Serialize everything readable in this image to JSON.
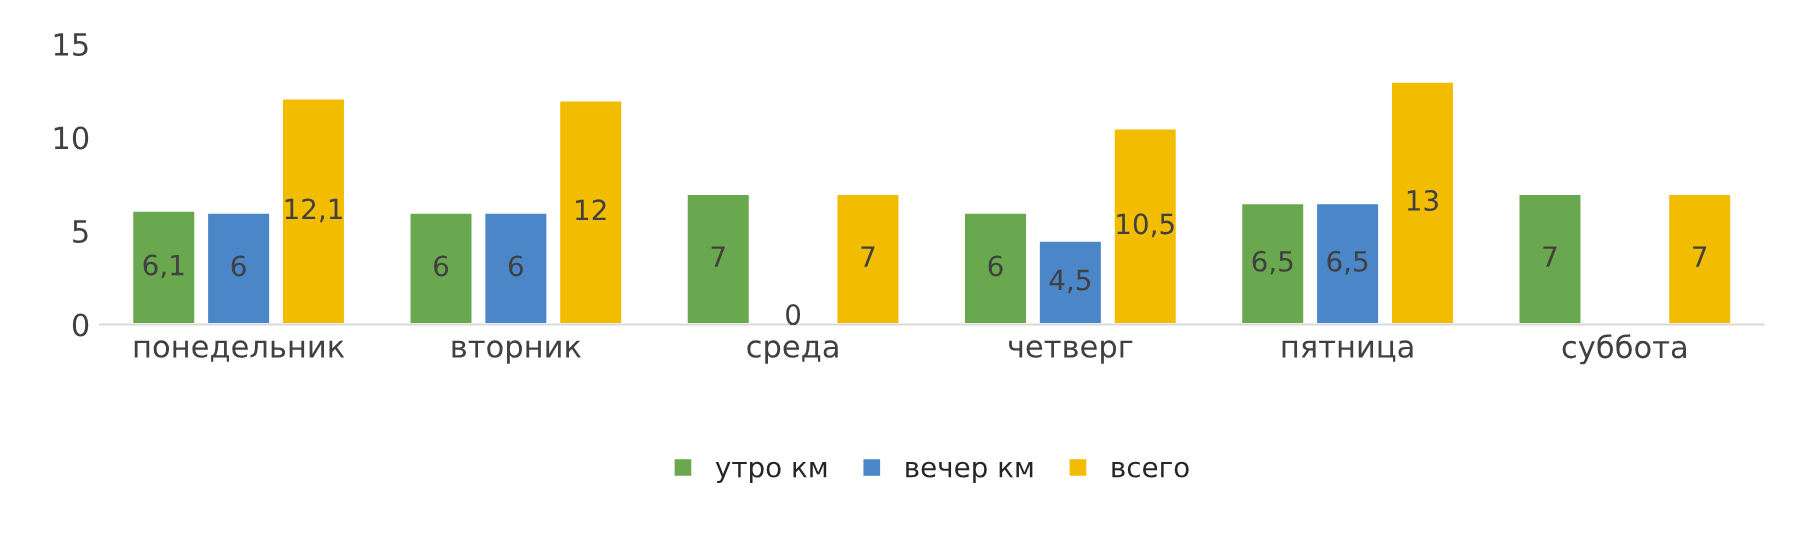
{
  "chart_data": {
    "type": "bar",
    "categories": [
      "понедельник",
      "вторник",
      "среда",
      "четверг",
      "пятница",
      "суббота"
    ],
    "series": [
      {
        "name": "утро км",
        "color": "#6aa84f",
        "values": [
          6.1,
          6,
          7,
          6,
          6.5,
          7
        ],
        "value_labels": [
          "6,1",
          "6",
          "7",
          "6",
          "6,5",
          "7"
        ]
      },
      {
        "name": "вечер км",
        "color": "#4a86c8",
        "values": [
          6,
          6,
          0,
          4.5,
          6.5,
          null
        ],
        "value_labels": [
          "6",
          "6",
          "0",
          "4,5",
          "6,5",
          null
        ]
      },
      {
        "name": "всего",
        "color": "#f2bc00",
        "values": [
          12.1,
          12,
          7,
          10.5,
          13,
          7
        ],
        "value_labels": [
          "12,1",
          "12",
          "7",
          "10,5",
          "13",
          "7"
        ]
      }
    ],
    "ylim": [
      0,
      15
    ],
    "yticks": [
      0,
      5,
      10,
      15
    ],
    "grid": false,
    "legend": "bottom"
  }
}
